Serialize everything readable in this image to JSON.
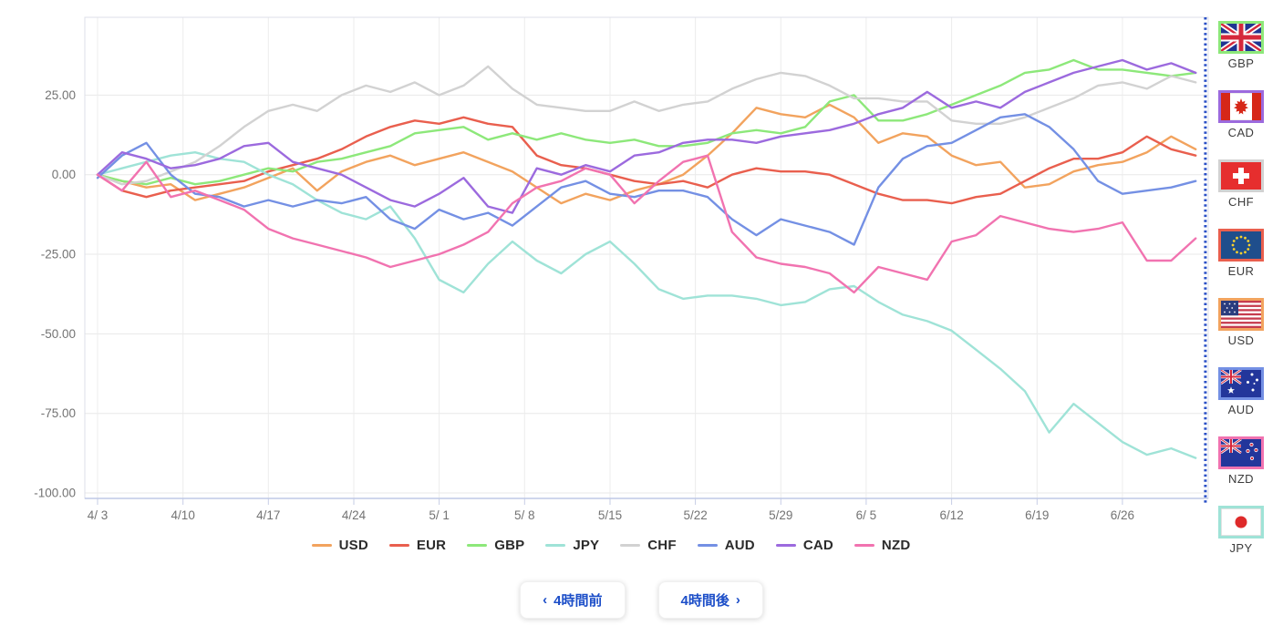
{
  "chart_data": {
    "type": "line",
    "title": "",
    "xlabel": "",
    "ylabel": "",
    "grid": true,
    "legend_position": "bottom",
    "ylim": [
      -101.5,
      49.5
    ],
    "xlim_days": [
      0,
      91
    ],
    "y_ticks": [
      25,
      0,
      -25,
      -50,
      -75,
      -100
    ],
    "x_ticks": [
      {
        "day": 0,
        "label": "4/ 3"
      },
      {
        "day": 7,
        "label": "4/10"
      },
      {
        "day": 14,
        "label": "4/17"
      },
      {
        "day": 21,
        "label": "4/24"
      },
      {
        "day": 28,
        "label": "5/ 1"
      },
      {
        "day": 35,
        "label": "5/ 8"
      },
      {
        "day": 42,
        "label": "5/15"
      },
      {
        "day": 49,
        "label": "5/22"
      },
      {
        "day": 56,
        "label": "5/29"
      },
      {
        "day": 63,
        "label": "6/ 5"
      },
      {
        "day": 70,
        "label": "6/12"
      },
      {
        "day": 77,
        "label": "6/19"
      },
      {
        "day": 84,
        "label": "6/26"
      }
    ],
    "days": [
      0,
      2,
      4,
      6,
      8,
      10,
      12,
      14,
      16,
      18,
      20,
      22,
      24,
      26,
      28,
      30,
      32,
      34,
      36,
      38,
      40,
      42,
      44,
      46,
      48,
      50,
      52,
      54,
      56,
      58,
      60,
      62,
      64,
      66,
      68,
      70,
      72,
      74,
      76,
      78,
      80,
      82,
      84,
      86,
      88,
      90
    ],
    "series": [
      {
        "name": "USD",
        "color": "#F2A35E",
        "values": [
          0,
          -2,
          -4,
          -3,
          -8,
          -6,
          -4,
          -1,
          2,
          -5,
          1,
          4,
          6,
          3,
          5,
          7,
          4,
          1,
          -4,
          -9,
          -6,
          -8,
          -5,
          -3,
          0,
          6,
          13,
          21,
          19,
          18,
          22,
          18,
          10,
          13,
          12,
          6,
          3,
          4,
          -4,
          -3,
          1,
          3,
          4,
          7,
          12,
          8
        ]
      },
      {
        "name": "EUR",
        "color": "#E95F4E",
        "values": [
          0,
          -5,
          -7,
          -5,
          -4,
          -3,
          -2,
          1,
          3,
          5,
          8,
          12,
          15,
          17,
          16,
          18,
          16,
          15,
          6,
          3,
          2,
          0,
          -2,
          -3,
          -2,
          -4,
          0,
          2,
          1,
          1,
          0,
          -3,
          -6,
          -8,
          -8,
          -9,
          -7,
          -6,
          -2,
          2,
          5,
          5,
          7,
          12,
          8,
          6
        ]
      },
      {
        "name": "GBP",
        "color": "#8DE87A",
        "values": [
          0,
          -2,
          -3,
          -1,
          -3,
          -2,
          0,
          2,
          1,
          4,
          5,
          7,
          9,
          13,
          14,
          15,
          11,
          13,
          11,
          13,
          11,
          10,
          11,
          9,
          9,
          10,
          13,
          14,
          13,
          15,
          23,
          25,
          17,
          17,
          19,
          22,
          25,
          28,
          32,
          33,
          36,
          33,
          33,
          32,
          31,
          32
        ]
      },
      {
        "name": "JPY",
        "color": "#9FE3D7",
        "values": [
          0,
          2,
          4,
          6,
          7,
          5,
          4,
          0,
          -3,
          -8,
          -12,
          -14,
          -10,
          -20,
          -33,
          -37,
          -28,
          -21,
          -27,
          -31,
          -25,
          -21,
          -28,
          -36,
          -39,
          -38,
          -38,
          -39,
          -41,
          -40,
          -36,
          -35,
          -40,
          -44,
          -46,
          -49,
          -55,
          -61,
          -68,
          -81,
          -72,
          -78,
          -84,
          -88,
          -86,
          -89
        ]
      },
      {
        "name": "CHF",
        "color": "#D2D2D2",
        "values": [
          0,
          -3,
          -2,
          1,
          4,
          9,
          15,
          20,
          22,
          20,
          25,
          28,
          26,
          29,
          25,
          28,
          34,
          27,
          22,
          21,
          20,
          20,
          23,
          20,
          22,
          23,
          27,
          30,
          32,
          31,
          28,
          24,
          24,
          23,
          23,
          17,
          16,
          16,
          18,
          21,
          24,
          28,
          29,
          27,
          31,
          29
        ]
      },
      {
        "name": "AUD",
        "color": "#7490E4",
        "values": [
          -1,
          6,
          10,
          0,
          -6,
          -7,
          -10,
          -8,
          -10,
          -8,
          -9,
          -7,
          -14,
          -17,
          -11,
          -14,
          -12,
          -16,
          -10,
          -4,
          -2,
          -6,
          -7,
          -5,
          -5,
          -7,
          -14,
          -19,
          -14,
          -16,
          -18,
          -22,
          -4,
          5,
          9,
          10,
          14,
          18,
          19,
          15,
          8,
          -2,
          -6,
          -5,
          -4,
          -2
        ]
      },
      {
        "name": "CAD",
        "color": "#9C6ADE",
        "values": [
          0,
          7,
          5,
          2,
          3,
          5,
          9,
          10,
          4,
          2,
          0,
          -4,
          -8,
          -10,
          -6,
          -1,
          -10,
          -12,
          2,
          0,
          3,
          1,
          6,
          7,
          10,
          11,
          11,
          10,
          12,
          13,
          14,
          16,
          19,
          21,
          26,
          21,
          23,
          21,
          26,
          29,
          32,
          34,
          36,
          33,
          35,
          32
        ]
      },
      {
        "name": "NZD",
        "color": "#F173B0",
        "values": [
          0,
          -5,
          4,
          -7,
          -5,
          -8,
          -11,
          -17,
          -20,
          -22,
          -24,
          -26,
          -29,
          -27,
          -25,
          -22,
          -18,
          -9,
          -4,
          -2,
          2,
          0,
          -9,
          -2,
          4,
          6,
          -18,
          -26,
          -28,
          -29,
          -31,
          -37,
          -29,
          -31,
          -33,
          -21,
          -19,
          -13,
          -15,
          -17,
          -18,
          -17,
          -15,
          -27,
          -27,
          -20
        ]
      }
    ],
    "now_line": {
      "day": 90.8,
      "color": "#2B50C6",
      "style": "dotted"
    }
  },
  "legend": {
    "items": [
      {
        "label": "USD",
        "color": "#F2A35E"
      },
      {
        "label": "EUR",
        "color": "#E95F4E"
      },
      {
        "label": "GBP",
        "color": "#8DE87A"
      },
      {
        "label": "JPY",
        "color": "#9FE3D7"
      },
      {
        "label": "CHF",
        "color": "#D2D2D2"
      },
      {
        "label": "AUD",
        "color": "#7490E4"
      },
      {
        "label": "CAD",
        "color": "#9C6ADE"
      },
      {
        "label": "NZD",
        "color": "#F173B0"
      }
    ]
  },
  "sidebar": {
    "items": [
      {
        "code": "GBP",
        "color": "#8DE87A",
        "flag": "uk-flag"
      },
      {
        "code": "CAD",
        "color": "#9C6ADE",
        "flag": "canada-flag"
      },
      {
        "code": "CHF",
        "color": "#D2D2D2",
        "flag": "switzerland-flag"
      },
      {
        "code": "EUR",
        "color": "#E95F4E",
        "flag": "eu-flag"
      },
      {
        "code": "USD",
        "color": "#F2A35E",
        "flag": "usa-flag"
      },
      {
        "code": "AUD",
        "color": "#7490E4",
        "flag": "australia-flag"
      },
      {
        "code": "NZD",
        "color": "#F173B0",
        "flag": "new-zealand-flag"
      },
      {
        "code": "JPY",
        "color": "#9FE3D7",
        "flag": "japan-flag"
      }
    ]
  },
  "controls": {
    "prev_chevron": "‹",
    "prev_label": "4時間前",
    "next_label": "4時間後",
    "next_chevron": "›"
  }
}
